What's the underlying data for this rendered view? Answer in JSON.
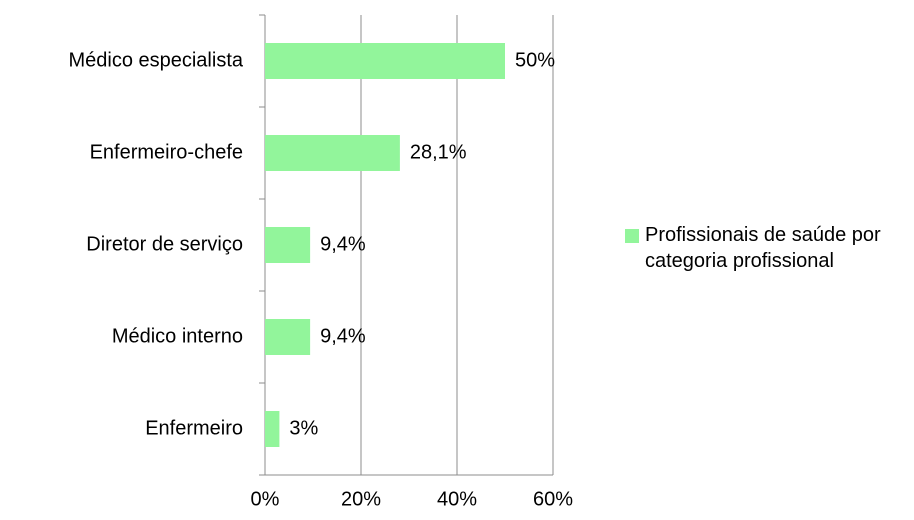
{
  "chart_data": {
    "type": "bar",
    "orientation": "horizontal",
    "categories": [
      "Médico especialista",
      "Enfermeiro-chefe",
      "Diretor de serviço",
      "Médico interno",
      "Enfermeiro"
    ],
    "series": [
      {
        "name": "Profissionais de saúde por categoria profissional",
        "color": "#92f59b",
        "values": [
          50,
          28.1,
          9.4,
          9.4,
          3
        ],
        "value_labels": [
          "50%",
          "28,1%",
          "9,4%",
          "9,4%",
          "3%"
        ]
      }
    ],
    "xlim": [
      0,
      60
    ],
    "xticks": [
      {
        "value": 0,
        "label": "0%"
      },
      {
        "value": 20,
        "label": "20%"
      },
      {
        "value": 40,
        "label": "40%"
      },
      {
        "value": 60,
        "label": "60%"
      }
    ],
    "grid": true,
    "legend": "right"
  }
}
